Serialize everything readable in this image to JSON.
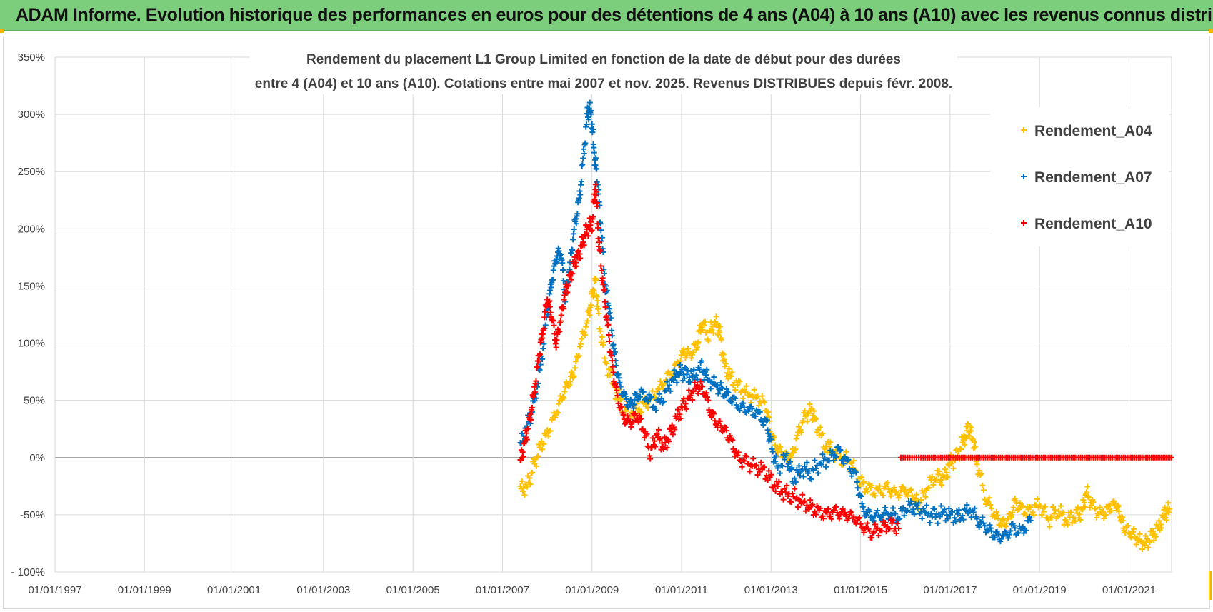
{
  "banner": {
    "title": "ADAM Informe. Evolution historique des performances en euros pour des détentions de 4 ans (A04) à 10 ans (A10) avec les revenus connus distribués",
    "background": "#7ccd7c"
  },
  "chart_data": {
    "type": "scatter",
    "title_lines": [
      "Rendement du placement L1 Group Limited en fonction de la date de début pour des durées",
      "entre 4 (A04) et 10 ans (A10). Cotations entre mai 2007 et nov. 2025. Revenus DISTRIBUES depuis févr. 2008."
    ],
    "xlabel": "",
    "ylabel": "",
    "xlim": [
      1997.0,
      2021.95
    ],
    "ylim": [
      -100,
      350
    ],
    "x_ticks": [
      "01/01/1997",
      "01/01/1999",
      "01/01/2001",
      "01/01/2003",
      "01/01/2005",
      "01/01/2007",
      "01/01/2009",
      "01/01/2011",
      "01/01/2013",
      "01/01/2015",
      "01/01/2017",
      "01/01/2019",
      "01/01/2021"
    ],
    "y_ticks": [
      "- 100%",
      "-50%",
      "0%",
      "50%",
      "100%",
      "150%",
      "200%",
      "250%",
      "300%",
      "350%"
    ],
    "grid": "vertical and horizontal",
    "legend_position": "right",
    "marker": "+",
    "series": [
      {
        "name": "Rendement_A04",
        "color": "#ffc000",
        "points": [
          [
            2007.4,
            -28
          ],
          [
            2007.55,
            -25
          ],
          [
            2007.7,
            -8
          ],
          [
            2007.85,
            10
          ],
          [
            2008.0,
            20
          ],
          [
            2008.2,
            40
          ],
          [
            2008.35,
            55
          ],
          [
            2008.5,
            68
          ],
          [
            2008.6,
            75
          ],
          [
            2008.75,
            100
          ],
          [
            2008.9,
            120
          ],
          [
            2009.0,
            140
          ],
          [
            2009.08,
            155
          ],
          [
            2009.15,
            120
          ],
          [
            2009.3,
            85
          ],
          [
            2009.5,
            60
          ],
          [
            2009.7,
            45
          ],
          [
            2009.9,
            40
          ],
          [
            2010.1,
            45
          ],
          [
            2010.3,
            50
          ],
          [
            2010.5,
            60
          ],
          [
            2010.7,
            70
          ],
          [
            2010.9,
            80
          ],
          [
            2011.05,
            92
          ],
          [
            2011.2,
            90
          ],
          [
            2011.35,
            100
          ],
          [
            2011.45,
            118
          ],
          [
            2011.6,
            108
          ],
          [
            2011.75,
            118
          ],
          [
            2011.85,
            112
          ],
          [
            2011.95,
            80
          ],
          [
            2012.1,
            70
          ],
          [
            2012.3,
            60
          ],
          [
            2012.5,
            55
          ],
          [
            2012.7,
            52
          ],
          [
            2012.9,
            45
          ],
          [
            2013.0,
            20
          ],
          [
            2013.15,
            8
          ],
          [
            2013.3,
            2
          ],
          [
            2013.45,
            -2
          ],
          [
            2013.6,
            20
          ],
          [
            2013.75,
            35
          ],
          [
            2013.9,
            42
          ],
          [
            2014.0,
            30
          ],
          [
            2014.2,
            12
          ],
          [
            2014.4,
            5
          ],
          [
            2014.6,
            0
          ],
          [
            2014.8,
            -5
          ],
          [
            2015.0,
            -22
          ],
          [
            2015.2,
            -28
          ],
          [
            2015.4,
            -30
          ],
          [
            2015.6,
            -27
          ],
          [
            2015.8,
            -32
          ],
          [
            2016.0,
            -28
          ],
          [
            2016.2,
            -35
          ],
          [
            2016.3,
            -40
          ],
          [
            2016.5,
            -25
          ],
          [
            2016.7,
            -15
          ],
          [
            2016.85,
            -20
          ],
          [
            2017.0,
            -5
          ],
          [
            2017.15,
            0
          ],
          [
            2017.3,
            15
          ],
          [
            2017.4,
            25
          ],
          [
            2017.5,
            20
          ],
          [
            2017.6,
            -5
          ],
          [
            2017.8,
            -35
          ],
          [
            2018.0,
            -50
          ],
          [
            2018.15,
            -58
          ],
          [
            2018.3,
            -55
          ],
          [
            2018.45,
            -40
          ],
          [
            2018.6,
            -45
          ],
          [
            2018.8,
            -48
          ],
          [
            2019.0,
            -40
          ],
          [
            2019.2,
            -55
          ],
          [
            2019.4,
            -45
          ],
          [
            2019.6,
            -55
          ],
          [
            2019.8,
            -50
          ],
          [
            2019.95,
            -48
          ],
          [
            2020.05,
            -30
          ],
          [
            2020.2,
            -45
          ],
          [
            2020.4,
            -50
          ],
          [
            2020.55,
            -45
          ],
          [
            2020.7,
            -40
          ],
          [
            2020.8,
            -50
          ],
          [
            2020.9,
            -62
          ],
          [
            2021.05,
            -65
          ],
          [
            2021.2,
            -72
          ],
          [
            2021.35,
            -75
          ],
          [
            2021.5,
            -70
          ],
          [
            2021.65,
            -62
          ],
          [
            2021.8,
            -50
          ],
          [
            2021.9,
            -45
          ]
        ]
      },
      {
        "name": "Rendement_A07",
        "color": "#0070c0",
        "points": [
          [
            2007.4,
            10
          ],
          [
            2007.55,
            28
          ],
          [
            2007.7,
            45
          ],
          [
            2007.85,
            80
          ],
          [
            2008.0,
            125
          ],
          [
            2008.1,
            155
          ],
          [
            2008.2,
            175
          ],
          [
            2008.3,
            182
          ],
          [
            2008.4,
            140
          ],
          [
            2008.5,
            165
          ],
          [
            2008.6,
            200
          ],
          [
            2008.7,
            220
          ],
          [
            2008.8,
            260
          ],
          [
            2008.9,
            300
          ],
          [
            2008.97,
            305
          ],
          [
            2009.05,
            265
          ],
          [
            2009.12,
            245
          ],
          [
            2009.2,
            200
          ],
          [
            2009.3,
            150
          ],
          [
            2009.4,
            125
          ],
          [
            2009.5,
            90
          ],
          [
            2009.6,
            65
          ],
          [
            2009.75,
            50
          ],
          [
            2009.9,
            45
          ],
          [
            2010.0,
            55
          ],
          [
            2010.2,
            55
          ],
          [
            2010.4,
            45
          ],
          [
            2010.6,
            55
          ],
          [
            2010.8,
            68
          ],
          [
            2010.95,
            75
          ],
          [
            2011.1,
            72
          ],
          [
            2011.25,
            70
          ],
          [
            2011.45,
            78
          ],
          [
            2011.6,
            68
          ],
          [
            2011.8,
            62
          ],
          [
            2011.95,
            58
          ],
          [
            2012.1,
            52
          ],
          [
            2012.3,
            45
          ],
          [
            2012.5,
            42
          ],
          [
            2012.7,
            38
          ],
          [
            2012.9,
            30
          ],
          [
            2013.0,
            10
          ],
          [
            2013.15,
            -10
          ],
          [
            2013.35,
            0
          ],
          [
            2013.5,
            -18
          ],
          [
            2013.7,
            -10
          ],
          [
            2013.9,
            -12
          ],
          [
            2014.1,
            -5
          ],
          [
            2014.3,
            0
          ],
          [
            2014.5,
            5
          ],
          [
            2014.7,
            -5
          ],
          [
            2014.9,
            -18
          ],
          [
            2015.05,
            -45
          ],
          [
            2015.25,
            -52
          ],
          [
            2015.45,
            -50
          ],
          [
            2015.65,
            -48
          ],
          [
            2015.85,
            -52
          ],
          [
            2016.05,
            -42
          ],
          [
            2016.25,
            -45
          ],
          [
            2016.45,
            -48
          ],
          [
            2016.65,
            -52
          ],
          [
            2016.85,
            -48
          ],
          [
            2017.05,
            -52
          ],
          [
            2017.25,
            -50
          ],
          [
            2017.45,
            -45
          ],
          [
            2017.65,
            -55
          ],
          [
            2017.85,
            -62
          ],
          [
            2018.0,
            -68
          ],
          [
            2018.2,
            -70
          ],
          [
            2018.4,
            -62
          ],
          [
            2018.6,
            -65
          ],
          [
            2018.8,
            -55
          ]
        ]
      },
      {
        "name": "Rendement_A10",
        "color": "#ff0000",
        "points": [
          [
            2007.4,
            -5
          ],
          [
            2007.5,
            15
          ],
          [
            2007.6,
            30
          ],
          [
            2007.7,
            55
          ],
          [
            2007.8,
            85
          ],
          [
            2007.9,
            110
          ],
          [
            2008.0,
            140
          ],
          [
            2008.1,
            125
          ],
          [
            2008.2,
            100
          ],
          [
            2008.3,
            120
          ],
          [
            2008.4,
            145
          ],
          [
            2008.5,
            155
          ],
          [
            2008.6,
            170
          ],
          [
            2008.7,
            175
          ],
          [
            2008.8,
            190
          ],
          [
            2008.9,
            200
          ],
          [
            2009.0,
            205
          ],
          [
            2009.08,
            240
          ],
          [
            2009.15,
            190
          ],
          [
            2009.25,
            150
          ],
          [
            2009.35,
            115
          ],
          [
            2009.45,
            80
          ],
          [
            2009.55,
            55
          ],
          [
            2009.7,
            35
          ],
          [
            2009.85,
            30
          ],
          [
            2010.0,
            38
          ],
          [
            2010.15,
            25
          ],
          [
            2010.3,
            5
          ],
          [
            2010.45,
            20
          ],
          [
            2010.6,
            10
          ],
          [
            2010.75,
            20
          ],
          [
            2010.9,
            35
          ],
          [
            2011.05,
            45
          ],
          [
            2011.2,
            55
          ],
          [
            2011.35,
            62
          ],
          [
            2011.5,
            60
          ],
          [
            2011.65,
            40
          ],
          [
            2011.8,
            30
          ],
          [
            2011.95,
            25
          ],
          [
            2012.1,
            15
          ],
          [
            2012.25,
            0
          ],
          [
            2012.45,
            -5
          ],
          [
            2012.65,
            -8
          ],
          [
            2012.85,
            -12
          ],
          [
            2013.05,
            -22
          ],
          [
            2013.25,
            -30
          ],
          [
            2013.45,
            -32
          ],
          [
            2013.65,
            -38
          ],
          [
            2013.85,
            -42
          ],
          [
            2014.05,
            -48
          ],
          [
            2014.25,
            -50
          ],
          [
            2014.45,
            -48
          ],
          [
            2014.65,
            -50
          ],
          [
            2014.85,
            -52
          ],
          [
            2015.05,
            -60
          ],
          [
            2015.25,
            -65
          ],
          [
            2015.45,
            -62
          ],
          [
            2015.65,
            -58
          ],
          [
            2015.85,
            -62
          ]
        ]
      },
      {
        "name": "",
        "color": "#ff0000",
        "points": [
          [
            2015.9,
            0
          ],
          [
            2016.5,
            0
          ],
          [
            2017.0,
            0
          ],
          [
            2017.5,
            0
          ],
          [
            2018.0,
            0
          ],
          [
            2018.5,
            0
          ],
          [
            2019.0,
            0
          ],
          [
            2019.5,
            0
          ],
          [
            2020.0,
            0
          ],
          [
            2020.5,
            0
          ],
          [
            2021.0,
            0
          ],
          [
            2021.5,
            0
          ],
          [
            2021.95,
            0
          ]
        ]
      }
    ]
  }
}
